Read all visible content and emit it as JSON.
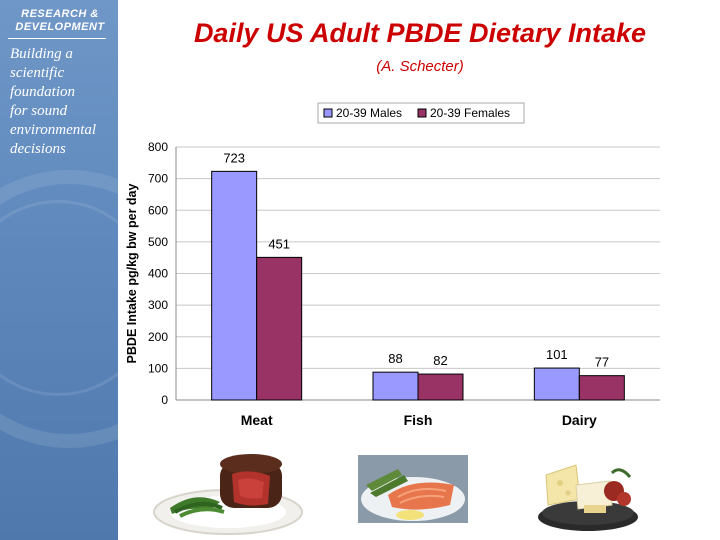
{
  "sidebar": {
    "org_line1": "RESEARCH &",
    "org_line2": "DEVELOPMENT",
    "tagline": [
      "Building a",
      "scientific",
      "foundation",
      "for sound",
      "environmental",
      "decisions"
    ]
  },
  "slide": {
    "title": "Daily US Adult PBDE Dietary Intake",
    "subtitle": "(A. Schecter)"
  },
  "colors": {
    "title": "#cc0000",
    "males": "#9999ff",
    "females": "#993366"
  },
  "chart_data": {
    "type": "bar",
    "categories": [
      "Meat",
      "Fish",
      "Dairy"
    ],
    "series": [
      {
        "name": "20-39 Males",
        "values": [
          723,
          88,
          101
        ],
        "color": "#9999ff"
      },
      {
        "name": "20-39 Females",
        "values": [
          451,
          82,
          77
        ],
        "color": "#993366"
      }
    ],
    "ylabel": "PBDE Intake pg/kg bw per day",
    "ylim": [
      0,
      800
    ],
    "yticks": [
      0,
      100,
      200,
      300,
      400,
      500,
      600,
      700,
      800
    ],
    "data_labels": true,
    "grid": true,
    "legend": "top-center"
  },
  "photos": [
    {
      "icon": "steak-icon"
    },
    {
      "icon": "salmon-icon"
    },
    {
      "icon": "cheese-platter-icon"
    }
  ]
}
